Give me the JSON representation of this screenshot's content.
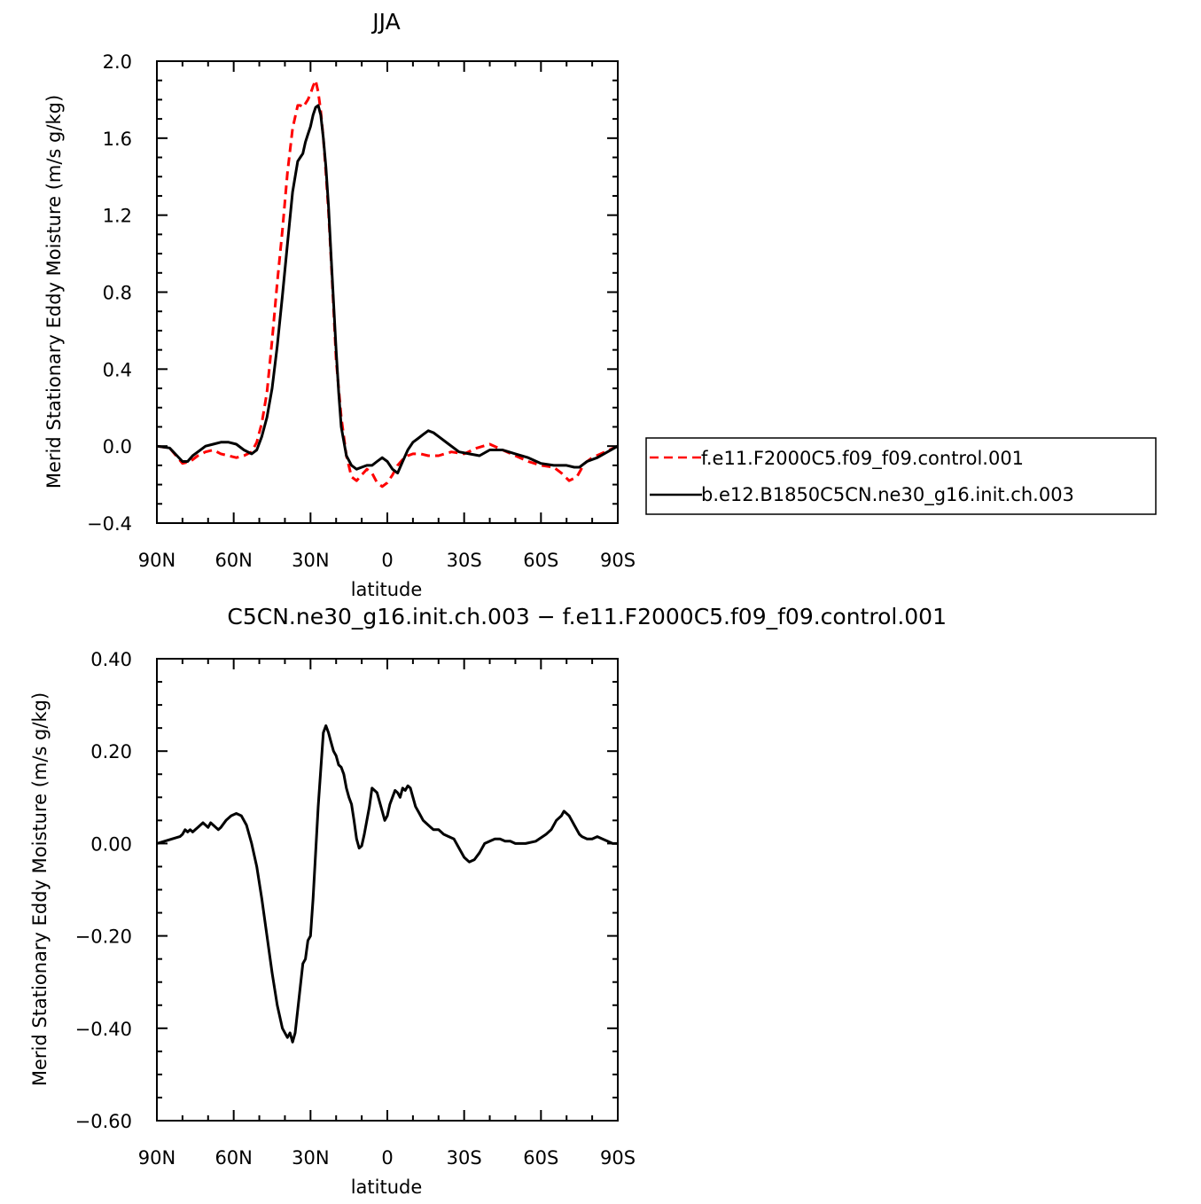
{
  "chart_data": [
    {
      "type": "line",
      "title": "JJA",
      "xlabel": "latitude",
      "ylabel": "Merid Stationary Eddy Moisture (m/s g/kg)",
      "xlim": [
        90,
        -90
      ],
      "ylim": [
        -0.4,
        2.0
      ],
      "x_ticks": [
        {
          "value": 90,
          "label": "90N"
        },
        {
          "value": 60,
          "label": "60N"
        },
        {
          "value": 30,
          "label": "30N"
        },
        {
          "value": 0,
          "label": "0"
        },
        {
          "value": -30,
          "label": "30S"
        },
        {
          "value": -60,
          "label": "60S"
        },
        {
          "value": -90,
          "label": "90S"
        }
      ],
      "y_ticks": [
        {
          "value": -0.4,
          "label": "−0.4"
        },
        {
          "value": 0.0,
          "label": "0.0"
        },
        {
          "value": 0.4,
          "label": "0.4"
        },
        {
          "value": 0.8,
          "label": "0.8"
        },
        {
          "value": 1.2,
          "label": "1.2"
        },
        {
          "value": 1.6,
          "label": "1.6"
        },
        {
          "value": 2.0,
          "label": "2.0"
        }
      ],
      "legend_position": "right",
      "series": [
        {
          "name": "f.e11.F2000C5.f09_f09.control.001",
          "color": "#ff0000",
          "dash": true,
          "x": [
            90,
            85,
            80,
            77,
            74,
            71,
            68,
            65,
            62,
            59,
            56,
            53,
            51,
            49,
            47,
            45,
            43,
            41,
            39,
            37,
            35,
            34,
            33,
            32,
            31,
            30,
            29,
            28,
            27,
            26,
            25,
            24,
            23,
            22,
            21,
            20,
            18,
            16,
            14,
            12,
            10,
            8,
            6,
            4,
            2,
            0,
            -2,
            -4,
            -6,
            -8,
            -10,
            -13,
            -16,
            -20,
            -25,
            -30,
            -35,
            -40,
            -45,
            -50,
            -55,
            -60,
            -65,
            -68,
            -71,
            -74,
            -77,
            -80,
            -85,
            -90
          ],
          "y": [
            0.0,
            -0.01,
            -0.09,
            -0.08,
            -0.05,
            -0.03,
            -0.02,
            -0.04,
            -0.05,
            -0.06,
            -0.05,
            -0.03,
            0.02,
            0.12,
            0.28,
            0.55,
            0.85,
            1.12,
            1.42,
            1.65,
            1.77,
            1.77,
            1.76,
            1.78,
            1.8,
            1.83,
            1.87,
            1.9,
            1.84,
            1.74,
            1.6,
            1.42,
            1.22,
            0.98,
            0.72,
            0.45,
            0.15,
            -0.05,
            -0.16,
            -0.18,
            -0.15,
            -0.12,
            -0.14,
            -0.19,
            -0.21,
            -0.19,
            -0.15,
            -0.1,
            -0.07,
            -0.05,
            -0.04,
            -0.04,
            -0.05,
            -0.05,
            -0.03,
            -0.04,
            -0.01,
            0.01,
            -0.02,
            -0.05,
            -0.08,
            -0.1,
            -0.11,
            -0.14,
            -0.18,
            -0.16,
            -0.09,
            -0.06,
            -0.03,
            0.0
          ]
        },
        {
          "name": "b.e12.B1850C5CN.ne30_g16.init.ch.003",
          "color": "#000000",
          "dash": false,
          "x": [
            90,
            85,
            80,
            78,
            76,
            74,
            71,
            68,
            65,
            62,
            59,
            56,
            53,
            51,
            49,
            47,
            45,
            43,
            41,
            39,
            37,
            35,
            34,
            33,
            32,
            31,
            30,
            29,
            28,
            27,
            26,
            25,
            24,
            23,
            22,
            21,
            20,
            19,
            18,
            16,
            14,
            12,
            10,
            8,
            6,
            4,
            2,
            0,
            -2,
            -4,
            -6,
            -8,
            -10,
            -12,
            -14,
            -16,
            -18,
            -20,
            -24,
            -28,
            -32,
            -36,
            -40,
            -45,
            -50,
            -55,
            -60,
            -65,
            -70,
            -73,
            -75,
            -78,
            -82,
            -86,
            -90
          ],
          "y": [
            0.0,
            -0.01,
            -0.08,
            -0.08,
            -0.05,
            -0.03,
            0.0,
            0.01,
            0.02,
            0.02,
            0.01,
            -0.02,
            -0.04,
            -0.02,
            0.05,
            0.15,
            0.3,
            0.52,
            0.78,
            1.05,
            1.32,
            1.48,
            1.5,
            1.52,
            1.58,
            1.62,
            1.66,
            1.72,
            1.76,
            1.77,
            1.72,
            1.6,
            1.45,
            1.25,
            1.0,
            0.75,
            0.5,
            0.28,
            0.1,
            -0.05,
            -0.1,
            -0.12,
            -0.11,
            -0.1,
            -0.1,
            -0.08,
            -0.06,
            -0.08,
            -0.12,
            -0.14,
            -0.08,
            -0.02,
            0.02,
            0.04,
            0.06,
            0.08,
            0.07,
            0.05,
            0.01,
            -0.03,
            -0.04,
            -0.05,
            -0.02,
            -0.02,
            -0.04,
            -0.06,
            -0.09,
            -0.1,
            -0.1,
            -0.11,
            -0.11,
            -0.08,
            -0.06,
            -0.03,
            0.0
          ]
        }
      ]
    },
    {
      "type": "line",
      "title": "C5CN.ne30_g16.init.ch.003 − f.e11.F2000C5.f09_f09.control.001",
      "xlabel": "latitude",
      "ylabel": "Merid Stationary Eddy Moisture (m/s g/kg)",
      "xlim": [
        90,
        -90
      ],
      "ylim": [
        -0.6,
        0.4
      ],
      "x_ticks": [
        {
          "value": 90,
          "label": "90N"
        },
        {
          "value": 60,
          "label": "60N"
        },
        {
          "value": 30,
          "label": "30N"
        },
        {
          "value": 0,
          "label": "0"
        },
        {
          "value": -30,
          "label": "30S"
        },
        {
          "value": -60,
          "label": "60S"
        },
        {
          "value": -90,
          "label": "90S"
        }
      ],
      "y_ticks": [
        {
          "value": -0.6,
          "label": "−0.60"
        },
        {
          "value": -0.4,
          "label": "−0.40"
        },
        {
          "value": -0.2,
          "label": "−0.20"
        },
        {
          "value": 0.0,
          "label": "0.00"
        },
        {
          "value": 0.2,
          "label": "0.20"
        },
        {
          "value": 0.4,
          "label": "0.40"
        }
      ],
      "series": [
        {
          "color": "#000000",
          "dash": false,
          "x": [
            90,
            87,
            84,
            81,
            80,
            79,
            78,
            77,
            76,
            75,
            74,
            73,
            72,
            71,
            70,
            69,
            68,
            67,
            66,
            65,
            63,
            61,
            59,
            57,
            55,
            53,
            51,
            49,
            47,
            45,
            43,
            41,
            39,
            38,
            37,
            36,
            35,
            34,
            33,
            32,
            31,
            30,
            29,
            28,
            27,
            26,
            25,
            24,
            23,
            22,
            21,
            20,
            19,
            18,
            17,
            16,
            15,
            14,
            13,
            12,
            11,
            10,
            9,
            8,
            7,
            6,
            5,
            4,
            3,
            2,
            1,
            0,
            -1,
            -2,
            -3,
            -4,
            -5,
            -6,
            -7,
            -8,
            -9,
            -10,
            -11,
            -12,
            -13,
            -14,
            -15,
            -16,
            -17,
            -18,
            -20,
            -22,
            -24,
            -26,
            -28,
            -30,
            -32,
            -34,
            -36,
            -38,
            -40,
            -42,
            -44,
            -46,
            -48,
            -50,
            -54,
            -58,
            -62,
            -64,
            -66,
            -68,
            -69,
            -70,
            -71,
            -72,
            -73,
            -74,
            -75,
            -76,
            -78,
            -80,
            -82,
            -84,
            -86,
            -88,
            -90
          ],
          "y": [
            0.0,
            0.005,
            0.01,
            0.015,
            0.02,
            0.03,
            0.025,
            0.03,
            0.025,
            0.03,
            0.035,
            0.04,
            0.045,
            0.04,
            0.035,
            0.045,
            0.04,
            0.035,
            0.03,
            0.035,
            0.05,
            0.06,
            0.065,
            0.06,
            0.04,
            0.0,
            -0.05,
            -0.12,
            -0.2,
            -0.28,
            -0.35,
            -0.4,
            -0.42,
            -0.41,
            -0.43,
            -0.41,
            -0.36,
            -0.31,
            -0.26,
            -0.25,
            -0.21,
            -0.2,
            -0.12,
            -0.02,
            0.08,
            0.16,
            0.24,
            0.255,
            0.24,
            0.22,
            0.2,
            0.19,
            0.17,
            0.165,
            0.15,
            0.12,
            0.1,
            0.085,
            0.05,
            0.01,
            -0.01,
            -0.005,
            0.02,
            0.05,
            0.08,
            0.12,
            0.115,
            0.11,
            0.09,
            0.07,
            0.05,
            0.06,
            0.085,
            0.1,
            0.115,
            0.11,
            0.1,
            0.12,
            0.115,
            0.125,
            0.12,
            0.1,
            0.08,
            0.07,
            0.06,
            0.05,
            0.045,
            0.04,
            0.035,
            0.03,
            0.03,
            0.02,
            0.015,
            0.01,
            -0.01,
            -0.03,
            -0.04,
            -0.035,
            -0.02,
            0.0,
            0.005,
            0.01,
            0.01,
            0.005,
            0.005,
            0.0,
            0.0,
            0.005,
            0.02,
            0.03,
            0.05,
            0.06,
            0.07,
            0.065,
            0.06,
            0.05,
            0.04,
            0.03,
            0.02,
            0.015,
            0.01,
            0.01,
            0.015,
            0.01,
            0.005,
            0.0,
            0.0
          ]
        }
      ]
    }
  ]
}
